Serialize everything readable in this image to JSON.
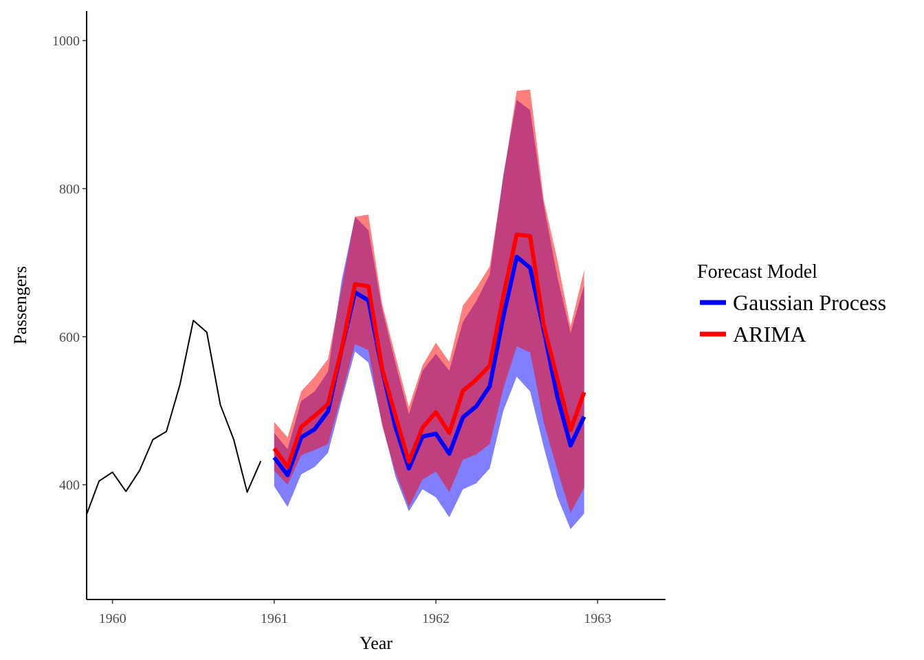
{
  "chart_data": {
    "type": "line",
    "xlabel": "Year",
    "ylabel": "Passengers",
    "xlim": [
      1959.84,
      1963.42
    ],
    "ylim": [
      245,
      1040
    ],
    "x_ticks": [
      1960,
      1961,
      1962,
      1963
    ],
    "y_ticks": [
      400,
      600,
      800,
      1000
    ],
    "grid": false,
    "legend": {
      "title": "Forecast Model",
      "placement": "right",
      "entries": [
        {
          "name": "Gaussian Process",
          "color": "#0000ff"
        },
        {
          "name": "ARIMA",
          "color": "#ff0000"
        }
      ]
    },
    "history": {
      "color": "#000000",
      "x": [
        1960.0,
        1960.083,
        1960.167,
        1960.25,
        1960.333,
        1960.417,
        1960.5,
        1960.583,
        1960.667,
        1960.75,
        1960.833,
        1960.917
      ],
      "values": [
        417,
        391,
        419,
        461,
        472,
        535,
        622,
        606,
        508,
        461,
        390,
        432
      ]
    },
    "history_lead_in": {
      "x": [
        1959.84,
        1959.917
      ],
      "values": [
        360,
        405
      ]
    },
    "forecast_x": [
      1961.0,
      1961.083,
      1961.167,
      1961.25,
      1961.333,
      1961.417,
      1961.5,
      1961.583,
      1961.667,
      1961.75,
      1961.833,
      1961.917,
      1962.0,
      1962.083,
      1962.167,
      1962.25,
      1962.333,
      1962.417,
      1962.5,
      1962.583,
      1962.667,
      1962.75,
      1962.833,
      1962.917
    ],
    "series": [
      {
        "name": "Gaussian Process",
        "color": "#0000ff",
        "band_color": "#0000ff",
        "values": [
          437,
          413,
          464,
          475,
          499,
          583,
          660,
          649,
          556,
          478,
          422,
          465,
          469,
          442,
          491,
          506,
          533,
          627,
          708,
          693,
          609,
          520,
          453,
          492
        ],
        "lower": [
          398,
          370,
          414,
          424,
          443,
          514,
          580,
          565,
          484,
          411,
          364,
          394,
          383,
          356,
          394,
          402,
          422,
          500,
          546,
          526,
          451,
          384,
          340,
          361
        ],
        "upper": [
          470,
          448,
          513,
          526,
          553,
          676,
          762,
          744,
          638,
          564,
          495,
          554,
          577,
          554,
          620,
          648,
          684,
          819,
          920,
          906,
          778,
          682,
          605,
          670
        ]
      },
      {
        "name": "ARIMA",
        "color": "#ff0000",
        "band_color": "#ff0000",
        "values": [
          449,
          424,
          478,
          493,
          509,
          583,
          671,
          668,
          557,
          493,
          431,
          477,
          498,
          470,
          527,
          542,
          561,
          655,
          738,
          736,
          615,
          544,
          474,
          525
        ],
        "lower": [
          419,
          400,
          440,
          447,
          455,
          521,
          590,
          582,
          480,
          417,
          370,
          407,
          418,
          390,
          434,
          441,
          455,
          530,
          587,
          579,
          484,
          421,
          362,
          396
        ],
        "upper": [
          485,
          464,
          526,
          546,
          570,
          665,
          762,
          765,
          645,
          574,
          505,
          561,
          592,
          566,
          642,
          666,
          695,
          814,
          932,
          934,
          785,
          705,
          614,
          690
        ]
      }
    ]
  }
}
